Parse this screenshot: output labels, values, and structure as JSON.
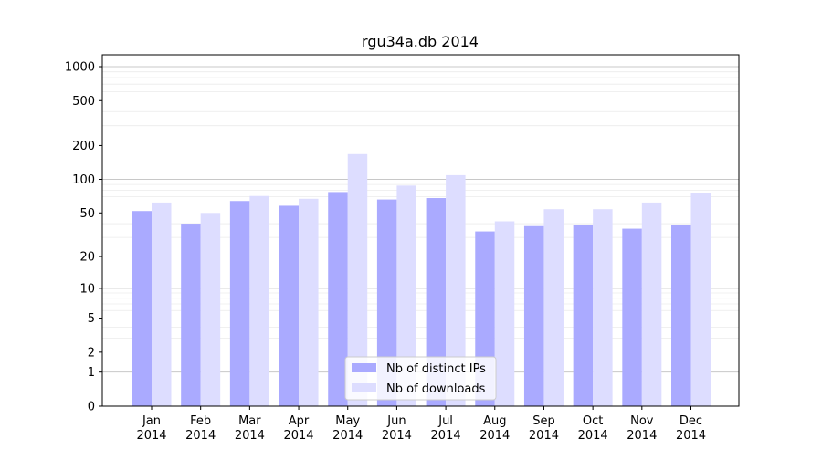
{
  "chart_data": {
    "type": "bar",
    "title": "rgu34a.db 2014",
    "xlabel": "",
    "ylabel": "",
    "yscale": "log1p",
    "ylim": [
      0,
      1200
    ],
    "yticks": [
      0,
      1,
      2,
      5,
      10,
      20,
      50,
      100,
      200,
      500,
      1000
    ],
    "ytick_labels": [
      "0",
      "1",
      "2",
      "5",
      "10",
      "20",
      "50",
      "100",
      "200",
      "500",
      "1000"
    ],
    "categories": [
      "Jan\n2014",
      "Feb\n2014",
      "Mar\n2014",
      "Apr\n2014",
      "May\n2014",
      "Jun\n2014",
      "Jul\n2014",
      "Aug\n2014",
      "Sep\n2014",
      "Oct\n2014",
      "Nov\n2014",
      "Dec\n2014"
    ],
    "series": [
      {
        "name": "Nb of distinct IPs",
        "color": "#aaaaff",
        "values": [
          52,
          40,
          64,
          58,
          77,
          66,
          68,
          34,
          38,
          39,
          36,
          39
        ]
      },
      {
        "name": "Nb of downloads",
        "color": "#ddddff",
        "values": [
          62,
          50,
          71,
          67,
          168,
          88,
          109,
          42,
          54,
          54,
          62,
          76
        ]
      }
    ],
    "grid": true,
    "legend_position": "lower-center"
  }
}
